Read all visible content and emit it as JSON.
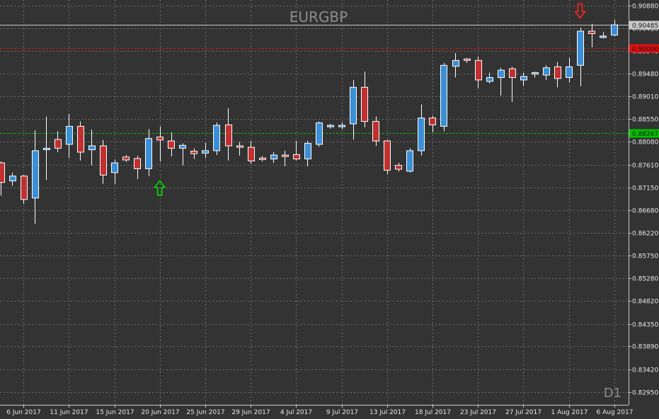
{
  "chart_data": {
    "type": "candlestick",
    "title": "EURGBP",
    "timeframe": "D1",
    "grid": true,
    "ylim": [
      0.8284,
      0.9094
    ],
    "y_ticks": [
      "0.90880",
      "0.90410",
      "0.89940",
      "0.89480",
      "0.89010",
      "0.88550",
      "0.88080",
      "0.87610",
      "0.87150",
      "0.86680",
      "0.86220",
      "0.85750",
      "0.85280",
      "0.84820",
      "0.84350",
      "0.83890",
      "0.83420",
      "0.82950"
    ],
    "x_ticks": [
      {
        "i": 2,
        "label": "6 Jun 2017"
      },
      {
        "i": 6,
        "label": "11 Jun 2017"
      },
      {
        "i": 10,
        "label": "15 Jun 2017"
      },
      {
        "i": 14,
        "label": "20 Jun 2017"
      },
      {
        "i": 18,
        "label": "25 Jun 2017"
      },
      {
        "i": 22,
        "label": "29 Jun 2017"
      },
      {
        "i": 26,
        "label": "4 Jul 2017"
      },
      {
        "i": 30,
        "label": "9 Jul 2017"
      },
      {
        "i": 34,
        "label": "13 Jul 2017"
      },
      {
        "i": 38,
        "label": "18 Jul 2017"
      },
      {
        "i": 42,
        "label": "23 Jul 2017"
      },
      {
        "i": 46,
        "label": "27 Jul 2017"
      },
      {
        "i": 50,
        "label": "1 Aug 2017"
      },
      {
        "i": 54,
        "label": "6 Aug 2017"
      }
    ],
    "candles": [
      {
        "o": 0.8765,
        "h": 0.8768,
        "l": 0.8698,
        "c": 0.8725
      },
      {
        "o": 0.8728,
        "h": 0.8745,
        "l": 0.8718,
        "c": 0.8738
      },
      {
        "o": 0.8738,
        "h": 0.874,
        "l": 0.8681,
        "c": 0.869
      },
      {
        "o": 0.8693,
        "h": 0.8832,
        "l": 0.864,
        "c": 0.879
      },
      {
        "o": 0.8793,
        "h": 0.886,
        "l": 0.873,
        "c": 0.8795
      },
      {
        "o": 0.8813,
        "h": 0.883,
        "l": 0.8787,
        "c": 0.8795
      },
      {
        "o": 0.8803,
        "h": 0.8865,
        "l": 0.8775,
        "c": 0.884
      },
      {
        "o": 0.884,
        "h": 0.885,
        "l": 0.877,
        "c": 0.8787
      },
      {
        "o": 0.8792,
        "h": 0.8833,
        "l": 0.876,
        "c": 0.88
      },
      {
        "o": 0.88,
        "h": 0.8812,
        "l": 0.8722,
        "c": 0.874
      },
      {
        "o": 0.8745,
        "h": 0.8772,
        "l": 0.8722,
        "c": 0.8765
      },
      {
        "o": 0.8777,
        "h": 0.8781,
        "l": 0.8767,
        "c": 0.8771
      },
      {
        "o": 0.8774,
        "h": 0.878,
        "l": 0.8732,
        "c": 0.8753
      },
      {
        "o": 0.8753,
        "h": 0.8834,
        "l": 0.8738,
        "c": 0.8815
      },
      {
        "o": 0.8818,
        "h": 0.884,
        "l": 0.8768,
        "c": 0.8812
      },
      {
        "o": 0.881,
        "h": 0.8828,
        "l": 0.8778,
        "c": 0.8795
      },
      {
        "o": 0.8795,
        "h": 0.8805,
        "l": 0.876,
        "c": 0.8801
      },
      {
        "o": 0.8789,
        "h": 0.8795,
        "l": 0.8773,
        "c": 0.8784
      },
      {
        "o": 0.8785,
        "h": 0.8806,
        "l": 0.8775,
        "c": 0.879
      },
      {
        "o": 0.879,
        "h": 0.8848,
        "l": 0.8781,
        "c": 0.8842
      },
      {
        "o": 0.8843,
        "h": 0.8877,
        "l": 0.877,
        "c": 0.88
      },
      {
        "o": 0.88,
        "h": 0.8808,
        "l": 0.878,
        "c": 0.8797
      },
      {
        "o": 0.8797,
        "h": 0.881,
        "l": 0.8763,
        "c": 0.8769
      },
      {
        "o": 0.8775,
        "h": 0.8779,
        "l": 0.8768,
        "c": 0.8772
      },
      {
        "o": 0.8773,
        "h": 0.8787,
        "l": 0.8765,
        "c": 0.8781
      },
      {
        "o": 0.8781,
        "h": 0.879,
        "l": 0.8758,
        "c": 0.878
      },
      {
        "o": 0.8782,
        "h": 0.881,
        "l": 0.877,
        "c": 0.8773
      },
      {
        "o": 0.8773,
        "h": 0.881,
        "l": 0.8758,
        "c": 0.8805
      },
      {
        "o": 0.8803,
        "h": 0.885,
        "l": 0.8798,
        "c": 0.8847
      },
      {
        "o": 0.884,
        "h": 0.8845,
        "l": 0.8835,
        "c": 0.8842
      },
      {
        "o": 0.884,
        "h": 0.8848,
        "l": 0.8834,
        "c": 0.8842
      },
      {
        "o": 0.8845,
        "h": 0.8935,
        "l": 0.8813,
        "c": 0.892
      },
      {
        "o": 0.892,
        "h": 0.8952,
        "l": 0.8838,
        "c": 0.885
      },
      {
        "o": 0.885,
        "h": 0.886,
        "l": 0.88,
        "c": 0.881
      },
      {
        "o": 0.881,
        "h": 0.8812,
        "l": 0.8742,
        "c": 0.875
      },
      {
        "o": 0.876,
        "h": 0.8765,
        "l": 0.8747,
        "c": 0.8752
      },
      {
        "o": 0.8748,
        "h": 0.8795,
        "l": 0.8745,
        "c": 0.879
      },
      {
        "o": 0.879,
        "h": 0.8885,
        "l": 0.878,
        "c": 0.8857
      },
      {
        "o": 0.8857,
        "h": 0.8862,
        "l": 0.8828,
        "c": 0.8843
      },
      {
        "o": 0.884,
        "h": 0.897,
        "l": 0.883,
        "c": 0.8965
      },
      {
        "o": 0.8963,
        "h": 0.899,
        "l": 0.894,
        "c": 0.8975
      },
      {
        "o": 0.8978,
        "h": 0.898,
        "l": 0.897,
        "c": 0.8975
      },
      {
        "o": 0.8975,
        "h": 0.8983,
        "l": 0.8918,
        "c": 0.8935
      },
      {
        "o": 0.8932,
        "h": 0.895,
        "l": 0.8928,
        "c": 0.894
      },
      {
        "o": 0.894,
        "h": 0.896,
        "l": 0.8903,
        "c": 0.8955
      },
      {
        "o": 0.8958,
        "h": 0.8962,
        "l": 0.889,
        "c": 0.894
      },
      {
        "o": 0.8935,
        "h": 0.895,
        "l": 0.8923,
        "c": 0.8942
      },
      {
        "o": 0.8948,
        "h": 0.8952,
        "l": 0.894,
        "c": 0.895
      },
      {
        "o": 0.8945,
        "h": 0.8965,
        "l": 0.8935,
        "c": 0.896
      },
      {
        "o": 0.8962,
        "h": 0.8972,
        "l": 0.892,
        "c": 0.8938
      },
      {
        "o": 0.894,
        "h": 0.898,
        "l": 0.893,
        "c": 0.8962
      },
      {
        "o": 0.8965,
        "h": 0.9042,
        "l": 0.8922,
        "c": 0.9035
      },
      {
        "o": 0.9035,
        "h": 0.905,
        "l": 0.9002,
        "c": 0.903
      },
      {
        "o": 0.9025,
        "h": 0.9033,
        "l": 0.902,
        "c": 0.9025
      },
      {
        "o": 0.9027,
        "h": 0.9058,
        "l": 0.9025,
        "c": 0.9048
      }
    ],
    "horizontal_lines": [
      {
        "price": 0.90485,
        "label": "0.90485",
        "color": "#c8c8c8",
        "style": "solid"
      },
      {
        "price": 0.9,
        "label": "0.90000",
        "color": "#e01010",
        "style": "dashed"
      },
      {
        "price": 0.88267,
        "label": "0.88267",
        "color": "#00c000",
        "style": "dashed"
      }
    ],
    "markers": [
      {
        "i": 14,
        "price": 0.8728,
        "direction": "up",
        "color": "#00e000"
      },
      {
        "i": 51,
        "price": 0.9062,
        "direction": "down",
        "color": "#ff2020"
      }
    ],
    "colors": {
      "background": "#333333",
      "bull": "#3a8fd6",
      "bear": "#c03030",
      "wick": "#ffffff",
      "grid": "#6e6e6e",
      "axis": "#c8c8c8",
      "text": "#e6e6e6",
      "watermark": "#8c8c8c"
    }
  }
}
